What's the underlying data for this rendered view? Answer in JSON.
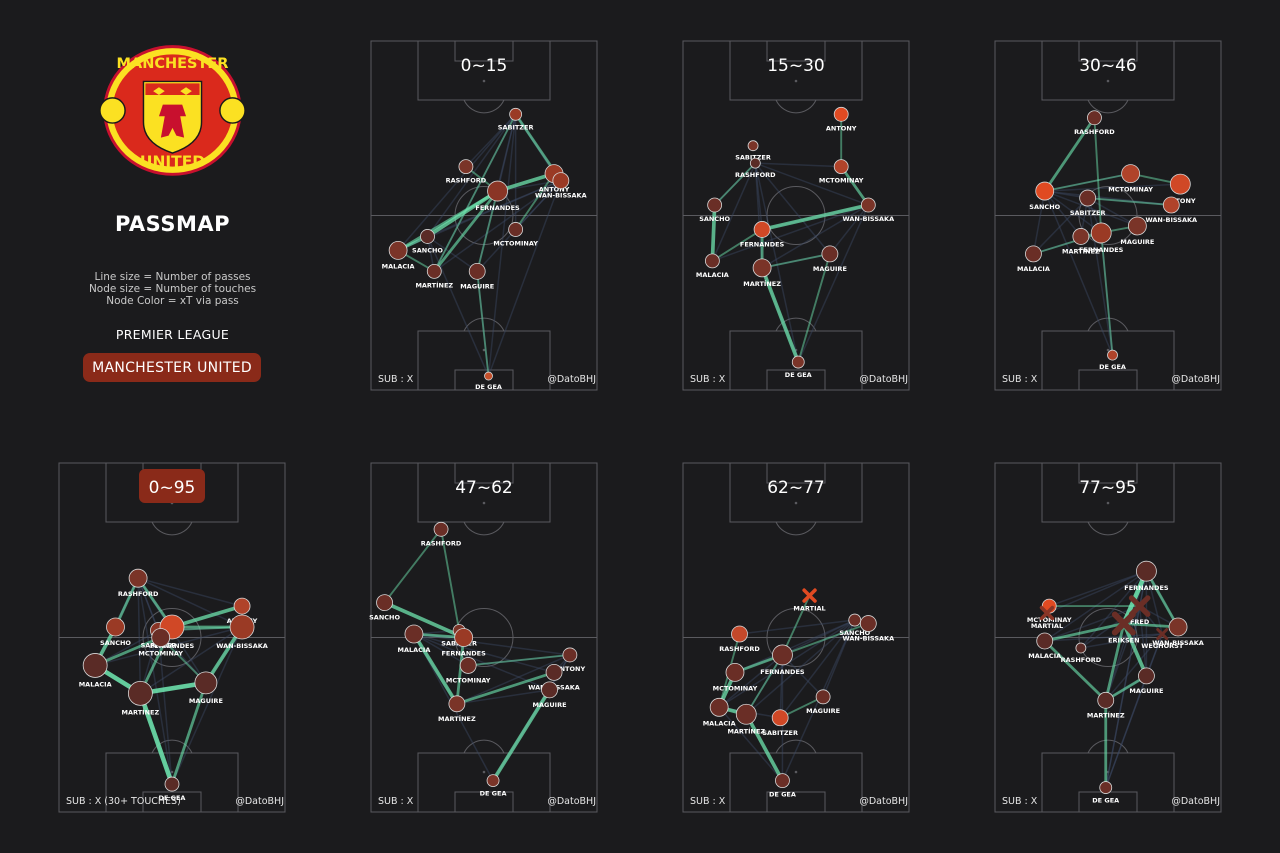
{
  "side": {
    "title": "PASSMAP",
    "legend": [
      "Line size = Number of passes",
      "Node size = Number of touches",
      "Node Color = xT via pass"
    ],
    "league": "PREMIER LEAGUE",
    "team": "MANCHESTER UNITED",
    "crest_icon": "manchester-united-crest",
    "crest_text_top": "MANCHESTER",
    "crest_text_bottom": "UNITED"
  },
  "colors": {
    "background": "#1b1b1d",
    "pitch_line": "#5a5a5f",
    "edge": "#6ee6b0",
    "node_high": "#e84a22",
    "node_low": "#3a2a28",
    "highlight_box": "#8a2a19"
  },
  "chart_data": [
    {
      "type": "network",
      "title": "0~15",
      "highlight": false,
      "sub": "SUB : X",
      "credit": "@DatoBHJ",
      "nodes": [
        {
          "name": "SABITZER",
          "x": 0.64,
          "y": 0.79,
          "size": 6,
          "color": "#9a3a25"
        },
        {
          "name": "RASHFORD",
          "x": 0.42,
          "y": 0.64,
          "size": 7,
          "color": "#7a3428"
        },
        {
          "name": "ANTONY",
          "x": 0.81,
          "y": 0.62,
          "size": 9,
          "color": "#9a3a25"
        },
        {
          "name": "WAN-BISSAKA",
          "x": 0.84,
          "y": 0.6,
          "size": 8,
          "color": "#9a3a25"
        },
        {
          "name": "FERNANDES",
          "x": 0.56,
          "y": 0.57,
          "size": 10,
          "color": "#8a3526"
        },
        {
          "name": "MCTOMINAY",
          "x": 0.64,
          "y": 0.46,
          "size": 7,
          "color": "#6a2e26"
        },
        {
          "name": "SANCHO",
          "x": 0.25,
          "y": 0.44,
          "size": 7,
          "color": "#5a2b26"
        },
        {
          "name": "MALACIA",
          "x": 0.12,
          "y": 0.4,
          "size": 9,
          "color": "#7a3428"
        },
        {
          "name": "MARTÍNEZ",
          "x": 0.28,
          "y": 0.34,
          "size": 7,
          "color": "#6a2e26"
        },
        {
          "name": "MAGUIRE",
          "x": 0.47,
          "y": 0.34,
          "size": 8,
          "color": "#6a2e26"
        },
        {
          "name": "DE GEA",
          "x": 0.52,
          "y": 0.04,
          "size": 4,
          "color": "#c4502b"
        }
      ],
      "edges": [
        [
          "SANCHO",
          "FERNANDES",
          3
        ],
        [
          "MALACIA",
          "SANCHO",
          2
        ],
        [
          "MALACIA",
          "FERNANDES",
          2
        ],
        [
          "FERNANDES",
          "ANTONY",
          3
        ],
        [
          "SABITZER",
          "WAN-BISSAKA",
          2
        ],
        [
          "SABITZER",
          "MARTÍNEZ",
          1
        ],
        [
          "MARTÍNEZ",
          "FERNANDES",
          2
        ],
        [
          "MARTÍNEZ",
          "MALACIA",
          1
        ],
        [
          "MCTOMINAY",
          "ANTONY",
          1
        ],
        [
          "FERNANDES",
          "RASHFORD",
          1
        ],
        [
          "MAGUIRE",
          "FERNANDES",
          1
        ],
        [
          "DE GEA",
          "MAGUIRE",
          1
        ]
      ]
    },
    {
      "type": "network",
      "title": "15~30",
      "highlight": false,
      "sub": "SUB : X",
      "credit": "@DatoBHJ",
      "nodes": [
        {
          "name": "ANTONY",
          "x": 0.7,
          "y": 0.79,
          "size": 7,
          "color": "#e04a22"
        },
        {
          "name": "SABITZER",
          "x": 0.31,
          "y": 0.7,
          "size": 5,
          "color": "#7a3428"
        },
        {
          "name": "RASHFORD",
          "x": 0.32,
          "y": 0.65,
          "size": 5,
          "color": "#5a2b26"
        },
        {
          "name": "MCTOMINAY",
          "x": 0.7,
          "y": 0.64,
          "size": 7,
          "color": "#b0432a"
        },
        {
          "name": "SANCHO",
          "x": 0.14,
          "y": 0.53,
          "size": 7,
          "color": "#6a2e26"
        },
        {
          "name": "WAN-BISSAKA",
          "x": 0.82,
          "y": 0.53,
          "size": 7,
          "color": "#7a3428"
        },
        {
          "name": "FERNANDES",
          "x": 0.35,
          "y": 0.46,
          "size": 8,
          "color": "#d04826"
        },
        {
          "name": "MALACIA",
          "x": 0.13,
          "y": 0.37,
          "size": 7,
          "color": "#6a2e26"
        },
        {
          "name": "MARTÍNEZ",
          "x": 0.35,
          "y": 0.35,
          "size": 9,
          "color": "#7a3428"
        },
        {
          "name": "MAGUIRE",
          "x": 0.65,
          "y": 0.39,
          "size": 8,
          "color": "#6a2e26"
        },
        {
          "name": "DE GEA",
          "x": 0.51,
          "y": 0.08,
          "size": 6,
          "color": "#7a3428"
        }
      ],
      "edges": [
        [
          "SANCHO",
          "MALACIA",
          3
        ],
        [
          "FERNANDES",
          "WAN-BISSAKA",
          3
        ],
        [
          "MARTÍNEZ",
          "FERNANDES",
          2
        ],
        [
          "MARTÍNEZ",
          "DE GEA",
          3
        ],
        [
          "MCTOMINAY",
          "WAN-BISSAKA",
          2
        ],
        [
          "ANTONY",
          "MCTOMINAY",
          1
        ],
        [
          "RASHFORD",
          "SANCHO",
          1
        ],
        [
          "MAGUIRE",
          "DE GEA",
          1
        ],
        [
          "MALACIA",
          "FERNANDES",
          1
        ],
        [
          "MARTÍNEZ",
          "MAGUIRE",
          1
        ]
      ]
    },
    {
      "type": "network",
      "title": "30~46",
      "highlight": false,
      "sub": "SUB : X",
      "credit": "@DatoBHJ",
      "nodes": [
        {
          "name": "RASHFORD",
          "x": 0.44,
          "y": 0.78,
          "size": 7,
          "color": "#6a2e26"
        },
        {
          "name": "SANCHO",
          "x": 0.22,
          "y": 0.57,
          "size": 9,
          "color": "#e04a22"
        },
        {
          "name": "MCTOMINAY",
          "x": 0.6,
          "y": 0.62,
          "size": 9,
          "color": "#b0432a"
        },
        {
          "name": "ANTONY",
          "x": 0.82,
          "y": 0.59,
          "size": 10,
          "color": "#d04826"
        },
        {
          "name": "SABITZER",
          "x": 0.41,
          "y": 0.55,
          "size": 8,
          "color": "#6a2e26"
        },
        {
          "name": "WAN-BISSAKA",
          "x": 0.78,
          "y": 0.53,
          "size": 8,
          "color": "#b0432a"
        },
        {
          "name": "MAGUIRE",
          "x": 0.63,
          "y": 0.47,
          "size": 9,
          "color": "#7a3428"
        },
        {
          "name": "FERNANDES",
          "x": 0.47,
          "y": 0.45,
          "size": 10,
          "color": "#9a3a25"
        },
        {
          "name": "MARTÍNEZ",
          "x": 0.38,
          "y": 0.44,
          "size": 8,
          "color": "#7a3428"
        },
        {
          "name": "MALACIA",
          "x": 0.17,
          "y": 0.39,
          "size": 8,
          "color": "#6a2e26"
        },
        {
          "name": "DE GEA",
          "x": 0.52,
          "y": 0.1,
          "size": 5,
          "color": "#b0432a"
        }
      ],
      "edges": [
        [
          "RASHFORD",
          "SANCHO",
          2
        ],
        [
          "RASHFORD",
          "FERNANDES",
          1
        ],
        [
          "SANCHO",
          "MCTOMINAY",
          1
        ],
        [
          "MCTOMINAY",
          "ANTONY",
          1
        ],
        [
          "SABITZER",
          "WAN-BISSAKA",
          1
        ],
        [
          "MALACIA",
          "FERNANDES",
          1
        ],
        [
          "FERNANDES",
          "DE GEA",
          1
        ],
        [
          "MARTÍNEZ",
          "MAGUIRE",
          1
        ]
      ]
    },
    {
      "type": "network",
      "title": "0~95",
      "highlight": true,
      "sub": "SUB : X (30+ TOUCHES)",
      "credit": "@DatoBHJ",
      "nodes": [
        {
          "name": "RASHFORD",
          "x": 0.35,
          "y": 0.67,
          "size": 9,
          "color": "#7a3428"
        },
        {
          "name": "ANTONY",
          "x": 0.81,
          "y": 0.59,
          "size": 8,
          "color": "#b0432a"
        },
        {
          "name": "SANCHO",
          "x": 0.25,
          "y": 0.53,
          "size": 9,
          "color": "#9a3a25"
        },
        {
          "name": "SABITZER",
          "x": 0.44,
          "y": 0.52,
          "size": 8,
          "color": "#8a3526"
        },
        {
          "name": "FERNANDES",
          "x": 0.5,
          "y": 0.53,
          "size": 12,
          "color": "#d04826"
        },
        {
          "name": "MCTOMINAY",
          "x": 0.45,
          "y": 0.5,
          "size": 9,
          "color": "#6a2e26"
        },
        {
          "name": "WAN-BISSAKA",
          "x": 0.81,
          "y": 0.53,
          "size": 12,
          "color": "#9a3a25"
        },
        {
          "name": "MALACIA",
          "x": 0.16,
          "y": 0.42,
          "size": 12,
          "color": "#5a2b26"
        },
        {
          "name": "MAGUIRE",
          "x": 0.65,
          "y": 0.37,
          "size": 11,
          "color": "#5a2b26"
        },
        {
          "name": "MARTÍNEZ",
          "x": 0.36,
          "y": 0.34,
          "size": 12,
          "color": "#5a2b26"
        },
        {
          "name": "DE GEA",
          "x": 0.5,
          "y": 0.08,
          "size": 7,
          "color": "#5a2b26"
        }
      ],
      "edges": [
        [
          "MALACIA",
          "MARTÍNEZ",
          4
        ],
        [
          "MARTÍNEZ",
          "MAGUIRE",
          4
        ],
        [
          "MAGUIRE",
          "WAN-BISSAKA",
          3
        ],
        [
          "FERNANDES",
          "ANTONY",
          3
        ],
        [
          "MALACIA",
          "SANCHO",
          3
        ],
        [
          "MARTÍNEZ",
          "DE GEA",
          4
        ],
        [
          "RASHFORD",
          "FERNANDES",
          2
        ],
        [
          "SANCHO",
          "RASHFORD",
          2
        ],
        [
          "WAN-BISSAKA",
          "FERNANDES",
          2
        ],
        [
          "MCTOMINAY",
          "MALACIA",
          2
        ],
        [
          "MARTÍNEZ",
          "FERNANDES",
          2
        ],
        [
          "MAGUIRE",
          "DE GEA",
          2
        ],
        [
          "MCTOMINAY",
          "MAGUIRE",
          1
        ],
        [
          "SABITZER",
          "WAN-BISSAKA",
          1
        ]
      ]
    },
    {
      "type": "network",
      "title": "47~62",
      "highlight": false,
      "sub": "SUB : X",
      "credit": "@DatoBHJ",
      "nodes": [
        {
          "name": "RASHFORD",
          "x": 0.31,
          "y": 0.81,
          "size": 7,
          "color": "#6a2e26"
        },
        {
          "name": "SANCHO",
          "x": 0.06,
          "y": 0.6,
          "size": 8,
          "color": "#6a2e26"
        },
        {
          "name": "MALACIA",
          "x": 0.19,
          "y": 0.51,
          "size": 9,
          "color": "#6a2e26"
        },
        {
          "name": "SABITZER",
          "x": 0.39,
          "y": 0.52,
          "size": 6,
          "color": "#7a3428"
        },
        {
          "name": "FERNANDES",
          "x": 0.41,
          "y": 0.5,
          "size": 9,
          "color": "#9a3a25"
        },
        {
          "name": "ANTONY",
          "x": 0.88,
          "y": 0.45,
          "size": 7,
          "color": "#6a2e26"
        },
        {
          "name": "MCTOMINAY",
          "x": 0.43,
          "y": 0.42,
          "size": 8,
          "color": "#6a2e26"
        },
        {
          "name": "WAN-BISSAKA",
          "x": 0.81,
          "y": 0.4,
          "size": 8,
          "color": "#5a2b26"
        },
        {
          "name": "MAGUIRE",
          "x": 0.79,
          "y": 0.35,
          "size": 8,
          "color": "#5a2b26"
        },
        {
          "name": "MARTÍNEZ",
          "x": 0.38,
          "y": 0.31,
          "size": 8,
          "color": "#7a3428"
        },
        {
          "name": "DE GEA",
          "x": 0.54,
          "y": 0.09,
          "size": 6,
          "color": "#7a3428"
        }
      ],
      "edges": [
        [
          "SANCHO",
          "FERNANDES",
          3
        ],
        [
          "MALACIA",
          "MARTÍNEZ",
          3
        ],
        [
          "FERNANDES",
          "MARTÍNEZ",
          2
        ],
        [
          "MAGUIRE",
          "DE GEA",
          3
        ],
        [
          "MARTÍNEZ",
          "WAN-BISSAKA",
          2
        ],
        [
          "MALACIA",
          "FERNANDES",
          2
        ],
        [
          "RASHFORD",
          "SABITZER",
          1
        ],
        [
          "MCTOMINAY",
          "ANTONY",
          1
        ],
        [
          "RASHFORD",
          "SANCHO",
          1
        ]
      ]
    },
    {
      "type": "network",
      "title": "62~77",
      "highlight": false,
      "sub": "SUB : X",
      "credit": "@DatoBHJ",
      "nodes": [
        {
          "name": "MARTIAL",
          "x": 0.56,
          "y": 0.62,
          "size": 6,
          "color": "#e04a22",
          "marker": "x"
        },
        {
          "name": "SANCHO",
          "x": 0.76,
          "y": 0.55,
          "size": 6,
          "color": "#6a2e26"
        },
        {
          "name": "WAN-BISSAKA",
          "x": 0.82,
          "y": 0.54,
          "size": 8,
          "color": "#6a2e26"
        },
        {
          "name": "RASHFORD",
          "x": 0.25,
          "y": 0.51,
          "size": 8,
          "color": "#c4482a"
        },
        {
          "name": "FERNANDES",
          "x": 0.44,
          "y": 0.45,
          "size": 10,
          "color": "#6a2e26"
        },
        {
          "name": "MCTOMINAY",
          "x": 0.23,
          "y": 0.4,
          "size": 9,
          "color": "#6a2e26"
        },
        {
          "name": "MAGUIRE",
          "x": 0.62,
          "y": 0.33,
          "size": 7,
          "color": "#6a2e26"
        },
        {
          "name": "MALACIA",
          "x": 0.16,
          "y": 0.3,
          "size": 9,
          "color": "#6a2e26"
        },
        {
          "name": "MARTÍNEZ",
          "x": 0.28,
          "y": 0.28,
          "size": 10,
          "color": "#6a2e26"
        },
        {
          "name": "SABITZER",
          "x": 0.43,
          "y": 0.27,
          "size": 8,
          "color": "#d04826"
        },
        {
          "name": "DE GEA",
          "x": 0.44,
          "y": 0.09,
          "size": 7,
          "color": "#6a2e26"
        }
      ],
      "edges": [
        [
          "MALACIA",
          "MARTÍNEZ",
          3
        ],
        [
          "MCTOMINAY",
          "MALACIA",
          3
        ],
        [
          "FERNANDES",
          "MCTOMINAY",
          2
        ],
        [
          "MARTÍNEZ",
          "DE GEA",
          3
        ],
        [
          "MARTÍNEZ",
          "FERNANDES",
          1
        ],
        [
          "SABITZER",
          "MAGUIRE",
          1
        ],
        [
          "FERNANDES",
          "WAN-BISSAKA",
          1
        ],
        [
          "MARTIAL",
          "FERNANDES",
          1
        ],
        [
          "RASHFORD",
          "MALACIA",
          1
        ]
      ]
    },
    {
      "type": "network",
      "title": "77~95",
      "highlight": false,
      "sub": "SUB : X",
      "credit": "@DatoBHJ",
      "nodes": [
        {
          "name": "FERNANDES",
          "x": 0.67,
          "y": 0.69,
          "size": 10,
          "color": "#5a2b26"
        },
        {
          "name": "MCTOMINAY",
          "x": 0.24,
          "y": 0.59,
          "size": 7,
          "color": "#e04a22"
        },
        {
          "name": "MARTIAL",
          "x": 0.23,
          "y": 0.57,
          "size": 6,
          "color": "#8a3526",
          "marker": "x"
        },
        {
          "name": "FRED",
          "x": 0.64,
          "y": 0.59,
          "size": 9,
          "color": "#6a2e26",
          "marker": "x"
        },
        {
          "name": "ERIKSEN",
          "x": 0.57,
          "y": 0.54,
          "size": 10,
          "color": "#6a2e26",
          "marker": "x"
        },
        {
          "name": "WAN-BISSAKA",
          "x": 0.81,
          "y": 0.53,
          "size": 9,
          "color": "#7a3428"
        },
        {
          "name": "WEGHORST",
          "x": 0.74,
          "y": 0.51,
          "size": 5,
          "color": "#6a2e26",
          "marker": "x"
        },
        {
          "name": "MALACIA",
          "x": 0.22,
          "y": 0.49,
          "size": 8,
          "color": "#5a2b26"
        },
        {
          "name": "RASHFORD",
          "x": 0.38,
          "y": 0.47,
          "size": 5,
          "color": "#5a2b26"
        },
        {
          "name": "MAGUIRE",
          "x": 0.67,
          "y": 0.39,
          "size": 8,
          "color": "#5a2b26"
        },
        {
          "name": "MARTÍNEZ",
          "x": 0.49,
          "y": 0.32,
          "size": 8,
          "color": "#5a2b26"
        },
        {
          "name": "DE GEA",
          "x": 0.49,
          "y": 0.07,
          "size": 6,
          "color": "#6a2e26"
        }
      ],
      "edges": [
        [
          "FERNANDES",
          "ERIKSEN",
          4
        ],
        [
          "ERIKSEN",
          "MAGUIRE",
          3
        ],
        [
          "MARTÍNEZ",
          "MALACIA",
          2
        ],
        [
          "MARTÍNEZ",
          "DE GEA",
          2
        ],
        [
          "MAGUIRE",
          "MARTÍNEZ",
          2
        ],
        [
          "FERNANDES",
          "WAN-BISSAKA",
          2
        ],
        [
          "MCTOMINAY",
          "FRED",
          1
        ],
        [
          "MALACIA",
          "ERIKSEN",
          2
        ],
        [
          "MARTÍNEZ",
          "ERIKSEN",
          2
        ],
        [
          "WAN-BISSAKA",
          "ERIKSEN",
          2
        ]
      ]
    }
  ]
}
